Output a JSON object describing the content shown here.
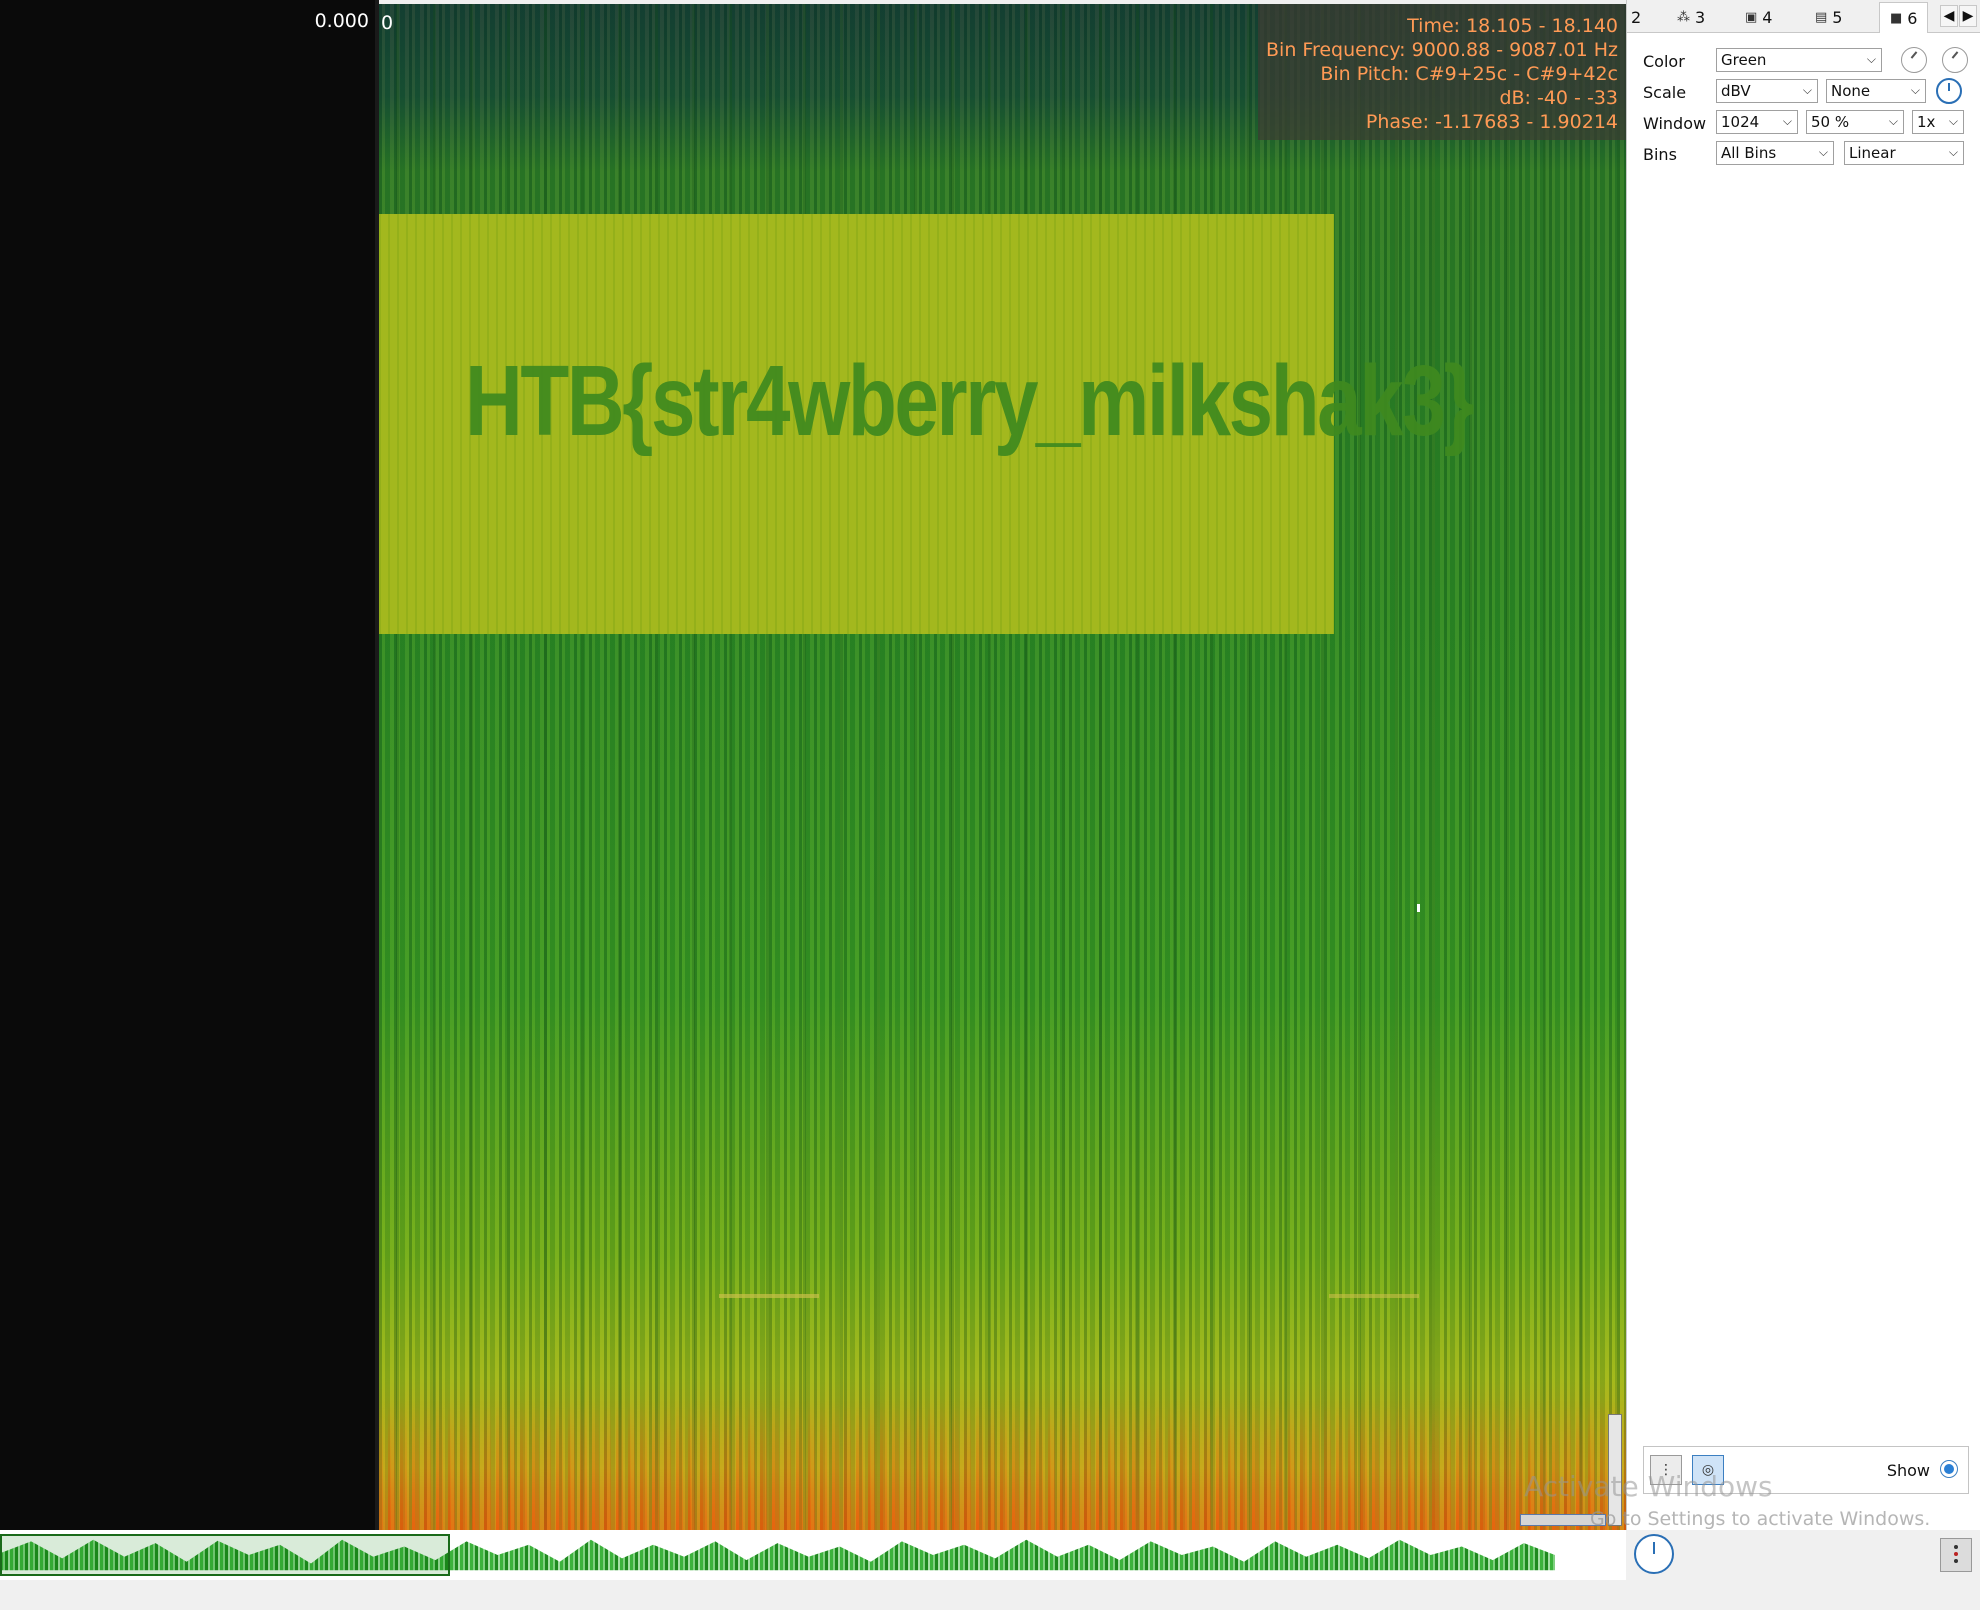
{
  "left_panel": {
    "scale_value": "0.000",
    "zero_label": "0"
  },
  "spectrogram": {
    "flag_text": "HTB{str4wberry_milkshak3}",
    "readout": {
      "time": "Time: 18.105 - 18.140",
      "bin_frequency": "Bin Frequency: 9000.88 - 9087.01 Hz",
      "bin_pitch": "Bin Pitch: C#9+25c - C#9+42c",
      "db": "dB: -40 - -33",
      "phase": "Phase: -1.17683 - 1.90214"
    },
    "readout_color": "#ff9a55"
  },
  "tabs": [
    {
      "label": "2",
      "icon": ""
    },
    {
      "label": "3",
      "icon": "waveform-icon"
    },
    {
      "label": "4",
      "icon": "image-icon"
    },
    {
      "label": "5",
      "icon": "spectrum-icon"
    },
    {
      "label": "6",
      "icon": "spectrogram-icon"
    }
  ],
  "settings": {
    "color": {
      "label": "Color",
      "value": "Green"
    },
    "scale": {
      "label": "Scale",
      "value": "dBV",
      "secondary": "None"
    },
    "window": {
      "label": "Window",
      "size": "1024",
      "overlap": "50 %",
      "zoom": "1x"
    },
    "bins": {
      "label": "Bins",
      "value": "All Bins",
      "mode": "Linear"
    }
  },
  "bottom_tools": {
    "show_label": "Show"
  },
  "watermark": {
    "title": "Activate Windows",
    "subtitle": "Go to Settings to activate Windows."
  },
  "colors": {
    "accent": "#2a6fb5",
    "spectrogram_primary": "#2f8a28",
    "flag_band": "#a3b81e"
  }
}
